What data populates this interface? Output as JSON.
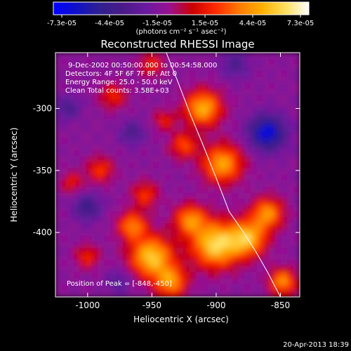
{
  "chart_data": {
    "type": "heatmap",
    "title": "Reconstructed RHESSI Image",
    "xlabel": "Heliocentric X (arcsec)",
    "ylabel": "Heliocentric Y (arcsec)",
    "xlim": [
      -1025,
      -835
    ],
    "ylim": [
      -452,
      -255
    ],
    "xticks": [
      -1000,
      -950,
      -900,
      -850
    ],
    "xtick_labels": [
      "-1000",
      "-950",
      "-900",
      "-850"
    ],
    "yticks": [
      -300,
      -350,
      -400
    ],
    "ytick_labels": [
      "-300",
      "-350",
      "-400"
    ],
    "colorbar": {
      "tick_labels": [
        "-7.3e-05",
        "-4.4e-05",
        "-1.5e-05",
        "1.5e-05",
        "4.4e-05",
        "7.3e-05"
      ],
      "units": "(photons cm⁻² s⁻¹ asec⁻²)",
      "min": -7.3e-05,
      "max": 7.3e-05,
      "colors": [
        "#0000ff",
        "#1010c8",
        "#302090",
        "#4a1a88",
        "#6a1aa0",
        "#9a1090",
        "#cc0000",
        "#ff2a00",
        "#ff7a00",
        "#ffb000",
        "#ffe060",
        "#ffffff"
      ]
    },
    "annotations": [
      "9-Dec-2002 00:50:00.000 to 00:54:58.000",
      "Detectors: 4F 5F 6F 7F 8F, Att 0",
      "Energy Range: 25.0 - 50.0 keV",
      "Clean    Total counts: 3.58E+03"
    ],
    "peak_text": "Position of Peak = [-848,-450]",
    "limb_curve": {
      "x": [
        -940,
        -930,
        -920,
        -910,
        -900,
        -890,
        -880,
        -870,
        -860,
        -850
      ],
      "y": [
        -252,
        -278,
        -305,
        -330,
        -356,
        -383,
        -398,
        -414,
        -432,
        -452
      ]
    },
    "grid": false,
    "legend": "none"
  },
  "footer": {
    "timestamp": "20-Apr-2013 18:39"
  }
}
